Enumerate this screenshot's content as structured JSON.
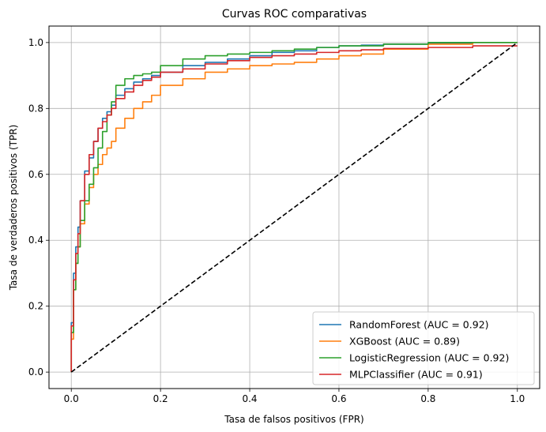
{
  "chart_data": {
    "type": "line",
    "title": "Curvas ROC comparativas",
    "xlabel": "Tasa de falsos positivos (FPR)",
    "ylabel": "Tasa de verdaderos positivos (TPR)",
    "xlim": [
      -0.05,
      1.05
    ],
    "ylim": [
      -0.05,
      1.05
    ],
    "xticks": [
      0.0,
      0.2,
      0.4,
      0.6,
      0.8,
      1.0
    ],
    "yticks": [
      0.0,
      0.2,
      0.4,
      0.6,
      0.8,
      1.0
    ],
    "xtick_labels": [
      "0.0",
      "0.2",
      "0.4",
      "0.6",
      "0.8",
      "1.0"
    ],
    "ytick_labels": [
      "0.0",
      "0.2",
      "0.4",
      "0.6",
      "0.8",
      "1.0"
    ],
    "grid": true,
    "legend_position": "lower-right",
    "series": [
      {
        "name": "RandomForest (AUC = 0.92)",
        "color": "#1f77b4",
        "x": [
          0.0,
          0.005,
          0.01,
          0.015,
          0.02,
          0.03,
          0.04,
          0.05,
          0.06,
          0.07,
          0.08,
          0.09,
          0.1,
          0.12,
          0.14,
          0.16,
          0.18,
          0.2,
          0.25,
          0.3,
          0.35,
          0.4,
          0.45,
          0.5,
          0.55,
          0.6,
          0.65,
          0.7,
          0.8,
          0.9,
          1.0
        ],
        "y": [
          0.0,
          0.15,
          0.3,
          0.38,
          0.44,
          0.52,
          0.61,
          0.65,
          0.7,
          0.74,
          0.77,
          0.79,
          0.81,
          0.84,
          0.86,
          0.88,
          0.89,
          0.9,
          0.91,
          0.93,
          0.94,
          0.95,
          0.96,
          0.97,
          0.975,
          0.985,
          0.99,
          0.992,
          0.995,
          0.998,
          1.0
        ]
      },
      {
        "name": "XGBoost (AUC = 0.89)",
        "color": "#ff7f0e",
        "x": [
          0.0,
          0.005,
          0.01,
          0.015,
          0.02,
          0.03,
          0.04,
          0.05,
          0.06,
          0.07,
          0.08,
          0.09,
          0.1,
          0.12,
          0.14,
          0.16,
          0.18,
          0.2,
          0.25,
          0.3,
          0.35,
          0.4,
          0.45,
          0.5,
          0.55,
          0.6,
          0.65,
          0.7,
          0.8,
          0.9,
          1.0
        ],
        "y": [
          0.0,
          0.1,
          0.25,
          0.33,
          0.38,
          0.45,
          0.51,
          0.56,
          0.6,
          0.63,
          0.66,
          0.68,
          0.7,
          0.74,
          0.77,
          0.8,
          0.82,
          0.84,
          0.87,
          0.89,
          0.91,
          0.92,
          0.93,
          0.935,
          0.94,
          0.95,
          0.96,
          0.965,
          0.98,
          0.995,
          1.0
        ]
      },
      {
        "name": "LogisticRegression (AUC = 0.92)",
        "color": "#2ca02c",
        "x": [
          0.0,
          0.005,
          0.01,
          0.015,
          0.02,
          0.03,
          0.04,
          0.05,
          0.06,
          0.07,
          0.08,
          0.09,
          0.1,
          0.12,
          0.14,
          0.16,
          0.18,
          0.2,
          0.25,
          0.3,
          0.35,
          0.4,
          0.45,
          0.5,
          0.55,
          0.6,
          0.65,
          0.7,
          0.8,
          0.9,
          1.0
        ],
        "y": [
          0.0,
          0.12,
          0.25,
          0.33,
          0.38,
          0.46,
          0.52,
          0.57,
          0.62,
          0.68,
          0.73,
          0.78,
          0.82,
          0.87,
          0.89,
          0.9,
          0.905,
          0.91,
          0.93,
          0.95,
          0.96,
          0.965,
          0.97,
          0.975,
          0.98,
          0.985,
          0.99,
          0.99,
          0.995,
          1.0,
          1.0
        ]
      },
      {
        "name": "MLPClassifier (AUC = 0.91)",
        "color": "#d62728",
        "x": [
          0.0,
          0.005,
          0.01,
          0.015,
          0.02,
          0.03,
          0.04,
          0.05,
          0.06,
          0.07,
          0.08,
          0.09,
          0.1,
          0.12,
          0.14,
          0.16,
          0.18,
          0.2,
          0.25,
          0.3,
          0.35,
          0.4,
          0.45,
          0.5,
          0.55,
          0.6,
          0.65,
          0.7,
          0.8,
          0.9,
          1.0
        ],
        "y": [
          0.0,
          0.14,
          0.28,
          0.36,
          0.42,
          0.52,
          0.6,
          0.66,
          0.7,
          0.74,
          0.76,
          0.78,
          0.8,
          0.83,
          0.85,
          0.87,
          0.885,
          0.895,
          0.91,
          0.92,
          0.935,
          0.945,
          0.955,
          0.96,
          0.965,
          0.97,
          0.975,
          0.978,
          0.982,
          0.985,
          0.99
        ]
      }
    ],
    "reference_line": {
      "x": [
        0.0,
        1.0
      ],
      "y": [
        0.0,
        1.0
      ],
      "color": "#000000",
      "style": "dashed"
    }
  }
}
